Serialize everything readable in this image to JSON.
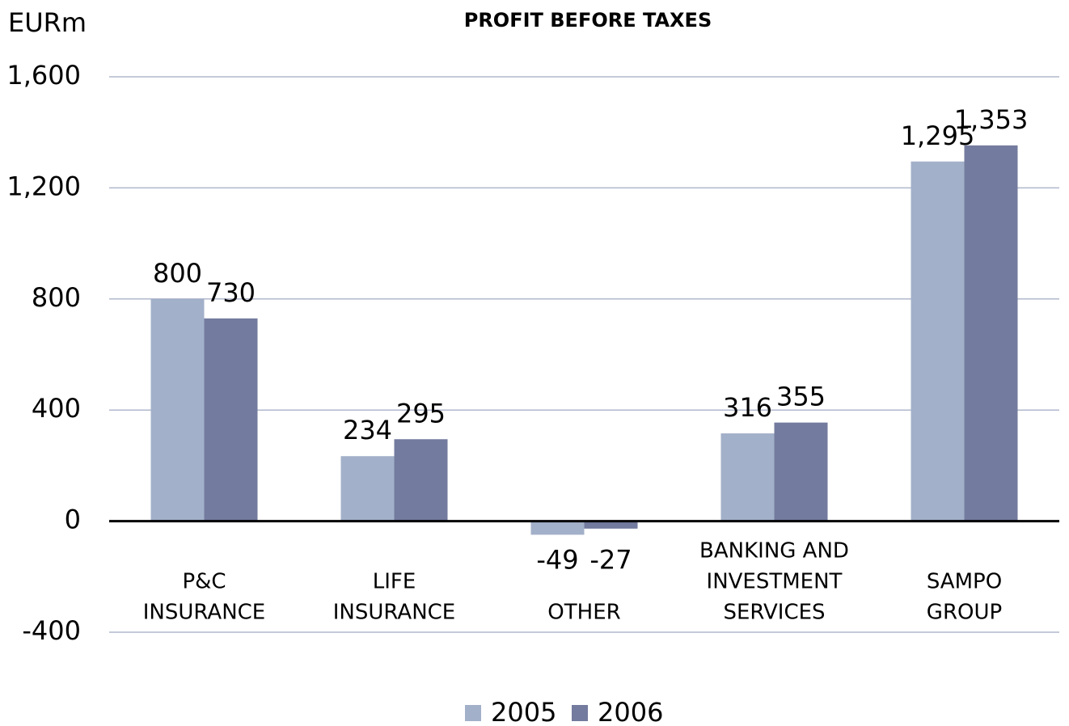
{
  "chart_data": {
    "type": "bar",
    "title": "PROFIT BEFORE TAXES",
    "y_label": "EURm",
    "categories": [
      [
        "P&C",
        "INSURANCE"
      ],
      [
        "LIFE",
        "INSURANCE"
      ],
      [
        "OTHER"
      ],
      [
        "BANKING AND",
        "INVESTMENT",
        "SERVICES"
      ],
      [
        "SAMPO",
        "GROUP"
      ]
    ],
    "series": [
      {
        "name": "2005",
        "color": "#a3b0c9",
        "values": [
          800,
          234,
          -49,
          316,
          1295
        ],
        "value_labels": [
          "800",
          "234",
          "-49",
          "316",
          "1,295"
        ]
      },
      {
        "name": "2006",
        "color": "#737b9e",
        "values": [
          730,
          295,
          -27,
          355,
          1353
        ],
        "value_labels": [
          "730",
          "295",
          "-27",
          "355",
          "1,353"
        ]
      }
    ],
    "ylim": [
      -400,
      1600
    ],
    "yticks": [
      -400,
      0,
      400,
      800,
      {
        "value": 1200,
        "label": "1,200"
      },
      {
        "value": 1600,
        "label": "1,600"
      }
    ],
    "grid": true,
    "legend": "bottom"
  }
}
